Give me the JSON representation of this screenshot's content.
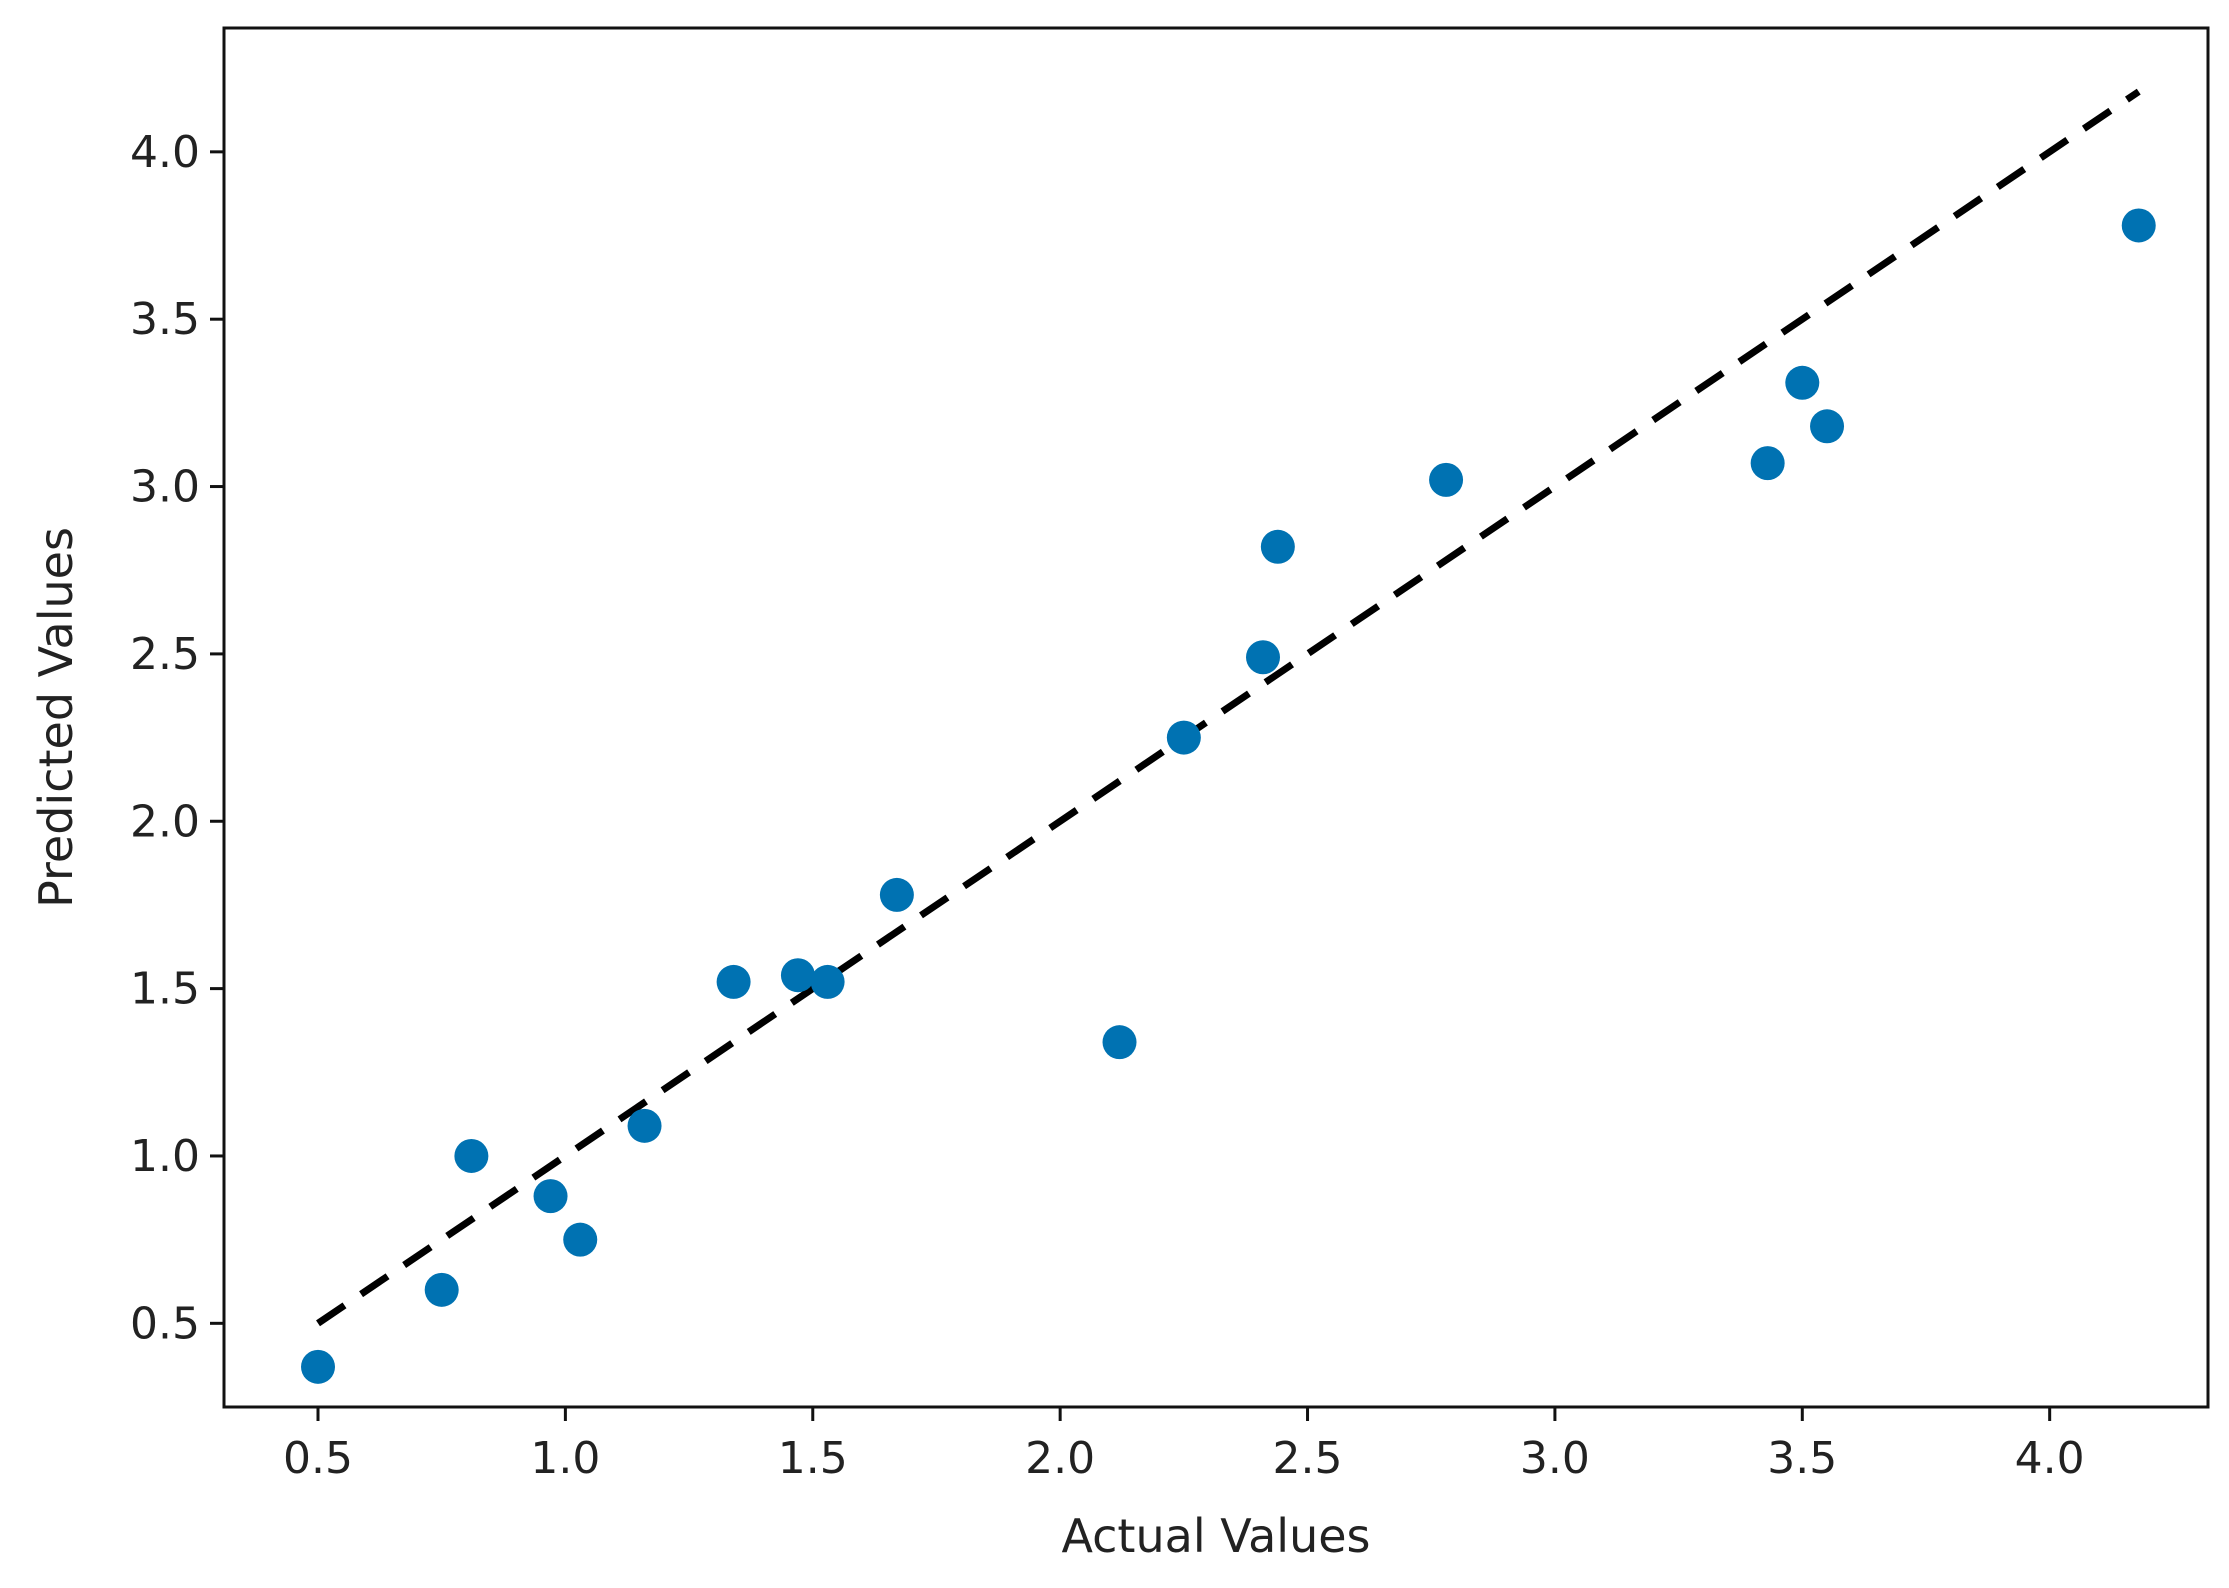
{
  "chart_data": {
    "type": "scatter",
    "title": "",
    "xlabel": "Actual Values",
    "ylabel": "Predicted Values",
    "xlim": [
      0.31,
      4.32
    ],
    "ylim": [
      0.25,
      4.37
    ],
    "xticks": [
      0.5,
      1.0,
      1.5,
      2.0,
      2.5,
      3.0,
      3.5,
      4.0
    ],
    "xtick_labels": [
      "0.5",
      "1.0",
      "1.5",
      "2.0",
      "2.5",
      "3.0",
      "3.5",
      "4.0"
    ],
    "yticks": [
      0.5,
      1.0,
      1.5,
      2.0,
      2.5,
      3.0,
      3.5,
      4.0
    ],
    "ytick_labels": [
      "0.5",
      "1.0",
      "1.5",
      "2.0",
      "2.5",
      "3.0",
      "3.5",
      "4.0"
    ],
    "grid": false,
    "legend": false,
    "marker_color": "#0072b2",
    "reference_line": {
      "style": "dashed",
      "color": "#000000",
      "x": [
        0.5,
        4.18
      ],
      "y": [
        0.5,
        4.18
      ]
    },
    "points": [
      {
        "x": 0.5,
        "y": 0.37
      },
      {
        "x": 0.75,
        "y": 0.6
      },
      {
        "x": 0.81,
        "y": 1.0
      },
      {
        "x": 0.97,
        "y": 0.88
      },
      {
        "x": 1.03,
        "y": 0.75
      },
      {
        "x": 1.16,
        "y": 1.09
      },
      {
        "x": 1.34,
        "y": 1.52
      },
      {
        "x": 1.47,
        "y": 1.54
      },
      {
        "x": 1.53,
        "y": 1.52
      },
      {
        "x": 1.67,
        "y": 1.78
      },
      {
        "x": 2.12,
        "y": 1.34
      },
      {
        "x": 2.25,
        "y": 2.25
      },
      {
        "x": 2.41,
        "y": 2.49
      },
      {
        "x": 2.44,
        "y": 2.82
      },
      {
        "x": 2.78,
        "y": 3.02
      },
      {
        "x": 3.43,
        "y": 3.07
      },
      {
        "x": 3.5,
        "y": 3.31
      },
      {
        "x": 3.55,
        "y": 3.18
      },
      {
        "x": 4.18,
        "y": 3.78
      }
    ]
  }
}
